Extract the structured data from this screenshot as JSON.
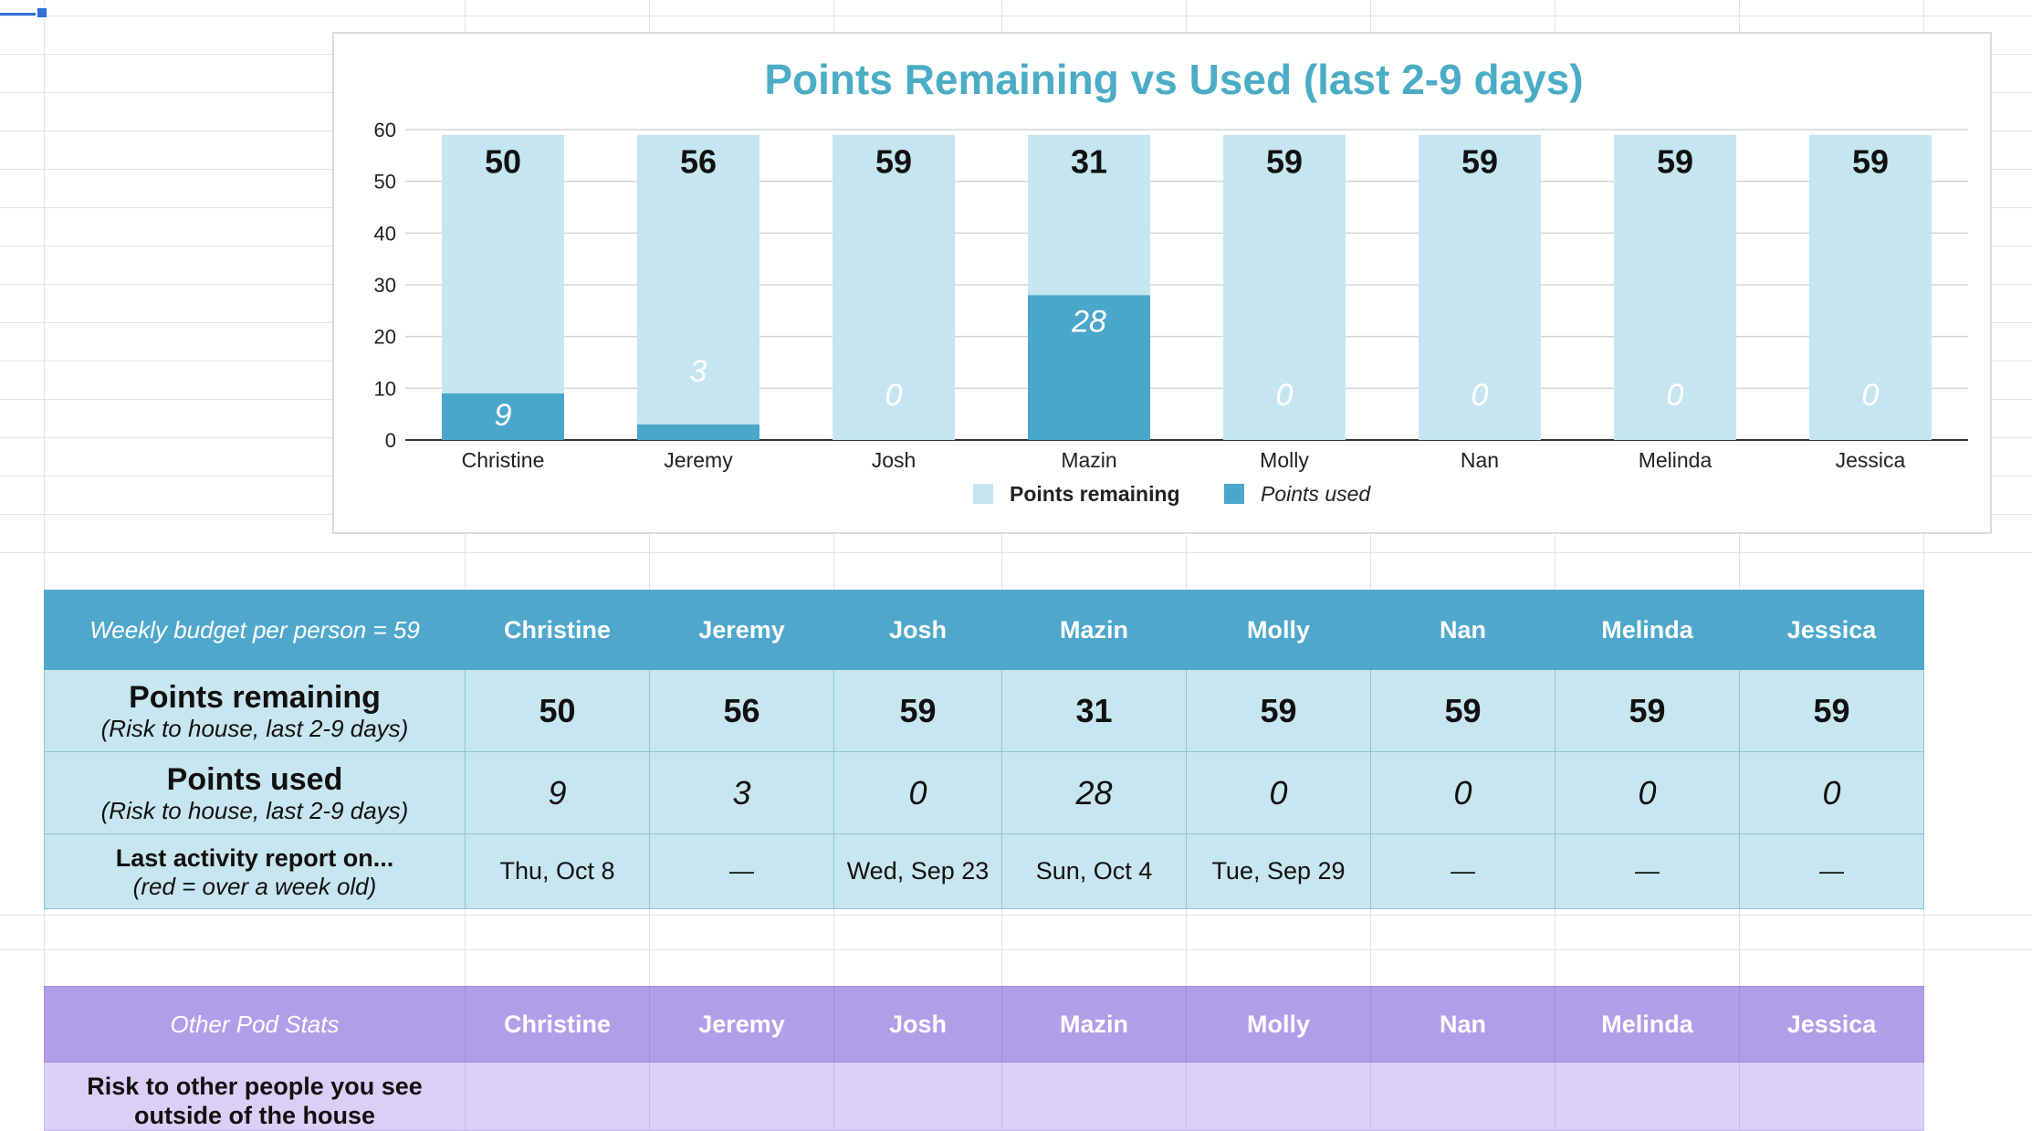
{
  "chart_data": {
    "type": "bar",
    "stacked": true,
    "title": "Points Remaining vs Used (last 2-9 days)",
    "categories": [
      "Christine",
      "Jeremy",
      "Josh",
      "Mazin",
      "Molly",
      "Nan",
      "Melinda",
      "Jessica"
    ],
    "series": [
      {
        "name": "Points remaining",
        "values": [
          50,
          56,
          59,
          31,
          59,
          59,
          59,
          59
        ],
        "color": "#c5e6f1"
      },
      {
        "name": "Points used",
        "values": [
          9,
          3,
          0,
          28,
          0,
          0,
          0,
          0
        ],
        "color": "#4aa7cb"
      }
    ],
    "ylim": [
      0,
      60
    ],
    "yticks": [
      0,
      10,
      20,
      30,
      40,
      50,
      60
    ],
    "grid": true,
    "legend": "bottom"
  },
  "budget_table": {
    "header_label": "Weekly budget per person = 59",
    "columns": [
      "Christine",
      "Jeremy",
      "Josh",
      "Mazin",
      "Molly",
      "Nan",
      "Melinda",
      "Jessica"
    ],
    "remaining": {
      "label": "Points remaining",
      "sub": "(Risk to house, last 2-9 days)",
      "values": [
        "50",
        "56",
        "59",
        "31",
        "59",
        "59",
        "59",
        "59"
      ]
    },
    "used": {
      "label": "Points used",
      "sub": "(Risk to house, last 2-9 days)",
      "values": [
        "9",
        "3",
        "0",
        "28",
        "0",
        "0",
        "0",
        "0"
      ]
    },
    "activity": {
      "label": "Last activity report on...",
      "sub": "(red = over a week old)",
      "values": [
        "Thu, Oct 8",
        "—",
        "Wed, Sep 23",
        "Sun, Oct 4",
        "Tue, Sep 29",
        "—",
        "—",
        "—"
      ]
    },
    "header_color": "#4fa8cc",
    "body_color": "#c8e6f0"
  },
  "pod_table": {
    "header_label": "Other Pod Stats",
    "columns": [
      "Christine",
      "Jeremy",
      "Josh",
      "Mazin",
      "Molly",
      "Nan",
      "Melinda",
      "Jessica"
    ],
    "row_label": "Risk to other people you see outside of the house",
    "header_color": "#b19ee8",
    "body_color": "#dccff7"
  }
}
